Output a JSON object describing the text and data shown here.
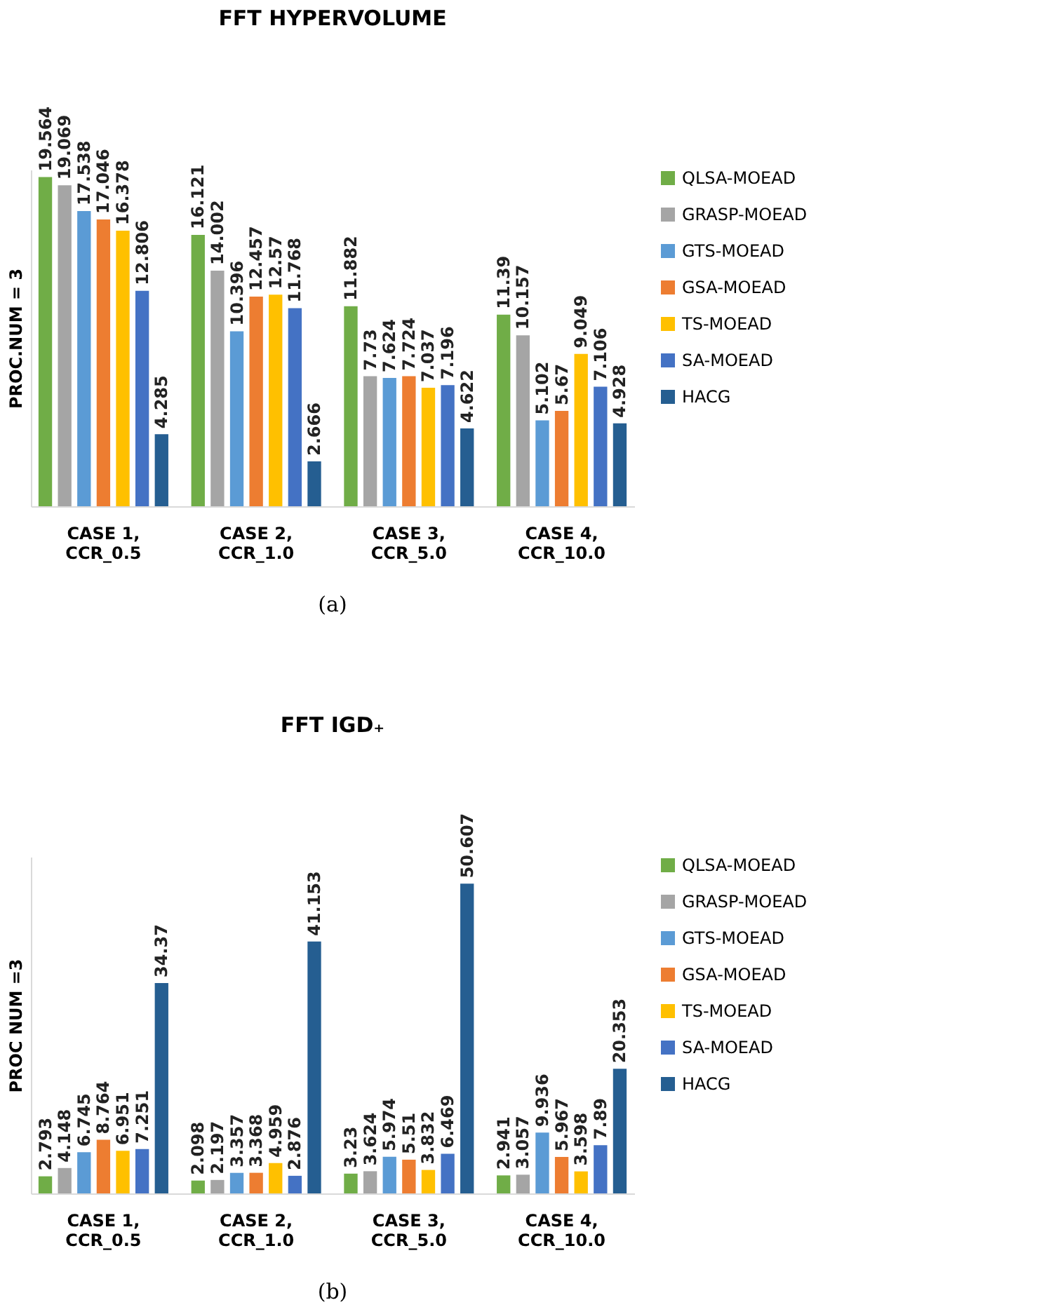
{
  "chart_data": [
    {
      "type": "bar",
      "title": "FFT HYPERVOLUME",
      "ylabel": "PROC.NUM = 3",
      "categories": [
        "CASE 1, CCR_0.5",
        "CASE 2, CCR_1.0",
        "CASE 3, CCR_5.0",
        "CASE 4, CCR_10.0"
      ],
      "data_labels": true,
      "legend": "right",
      "annotations": [
        "(a)"
      ],
      "series": [
        {
          "name": "QLSA-MOEAD",
          "color": "#70ad47",
          "values": [
            19.564,
            16.121,
            11.882,
            11.39
          ]
        },
        {
          "name": "GRASP-MOEAD",
          "color": "#a5a5a5",
          "values": [
            19.069,
            14.002,
            7.73,
            10.157
          ]
        },
        {
          "name": "GTS-MOEAD",
          "color": "#5b9bd5",
          "values": [
            17.538,
            10.396,
            7.624,
            5.102
          ]
        },
        {
          "name": "GSA-MOEAD",
          "color": "#ed7d31",
          "values": [
            17.046,
            12.457,
            7.724,
            5.67
          ]
        },
        {
          "name": "TS-MOEAD",
          "color": "#ffc000",
          "values": [
            16.378,
            12.57,
            7.037,
            9.049
          ]
        },
        {
          "name": "SA-MOEAD",
          "color": "#4472c4",
          "values": [
            12.806,
            11.768,
            7.196,
            7.106
          ]
        },
        {
          "name": "HACG",
          "color": "#255e91",
          "values": [
            4.285,
            2.666,
            4.622,
            4.928
          ]
        }
      ]
    },
    {
      "type": "bar",
      "title": "FFT IGD₊",
      "ylabel": "PROC NUM =3",
      "categories": [
        "CASE 1, CCR_0.5",
        "CASE 2, CCR_1.0",
        "CASE 3, CCR_5.0",
        "CASE 4, CCR_10.0"
      ],
      "data_labels": true,
      "legend": "right",
      "annotations": [
        "(b)"
      ],
      "series": [
        {
          "name": "QLSA-MOEAD",
          "color": "#70ad47",
          "values": [
            2.793,
            2.098,
            3.23,
            2.941
          ]
        },
        {
          "name": "GRASP-MOEAD",
          "color": "#a5a5a5",
          "values": [
            4.148,
            2.197,
            3.624,
            3.057
          ]
        },
        {
          "name": "GTS-MOEAD",
          "color": "#5b9bd5",
          "values": [
            6.745,
            3.357,
            5.974,
            9.936
          ]
        },
        {
          "name": "GSA-MOEAD",
          "color": "#ed7d31",
          "values": [
            8.764,
            3.368,
            5.51,
            5.967
          ]
        },
        {
          "name": "TS-MOEAD",
          "color": "#ffc000",
          "values": [
            6.951,
            4.959,
            3.832,
            3.598
          ]
        },
        {
          "name": "SA-MOEAD",
          "color": "#4472c4",
          "values": [
            7.251,
            2.876,
            6.469,
            7.89
          ]
        },
        {
          "name": "HACG",
          "color": "#255e91",
          "values": [
            34.37,
            41.153,
            50.607,
            20.353
          ]
        }
      ]
    }
  ]
}
